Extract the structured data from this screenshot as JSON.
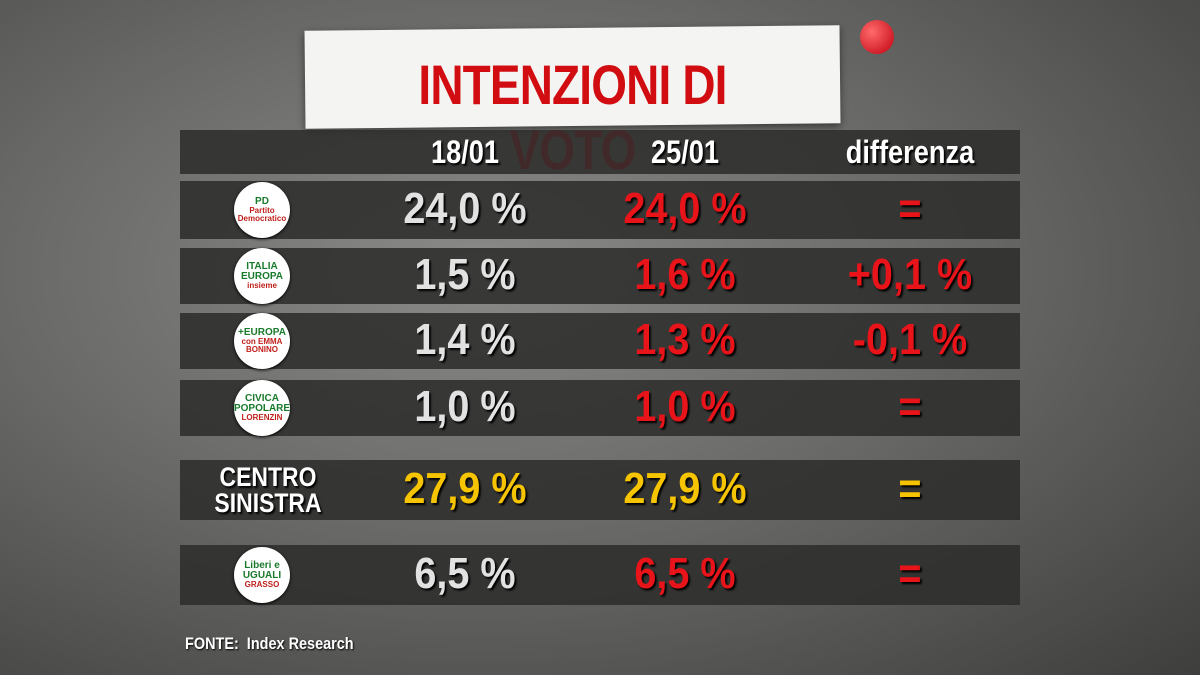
{
  "title": "INTENZIONI DI VOTO",
  "table": {
    "headers": [
      "18/01",
      "25/01",
      "differenza"
    ],
    "rows": [
      {
        "logo": [
          "PD",
          "Partito Democratico"
        ],
        "cells": [
          "24,0 %",
          "24,0 %",
          "="
        ]
      },
      {
        "logo": [
          "ITALIA EUROPA",
          "insieme"
        ],
        "cells": [
          "1,5 %",
          "1,6 %",
          "+0,1 %"
        ]
      },
      {
        "logo": [
          "+EUROPA",
          "con EMMA BONINO"
        ],
        "cells": [
          "1,4 %",
          "1,3 %",
          "-0,1 %"
        ]
      },
      {
        "logo": [
          "CIVICA POPOLARE",
          "LORENZIN"
        ],
        "cells": [
          "1,0 %",
          "1,0 %",
          "="
        ]
      },
      {
        "label": "CENTRO SINISTRA",
        "cells": [
          "27,9 %",
          "27,9 %",
          "="
        ]
      },
      {
        "logo": [
          "Liberi e UGUALI",
          "GRASSO"
        ],
        "cells": [
          "6,5 %",
          "6,5 %",
          "="
        ]
      }
    ]
  },
  "source": "FONTE:  Index Research"
}
